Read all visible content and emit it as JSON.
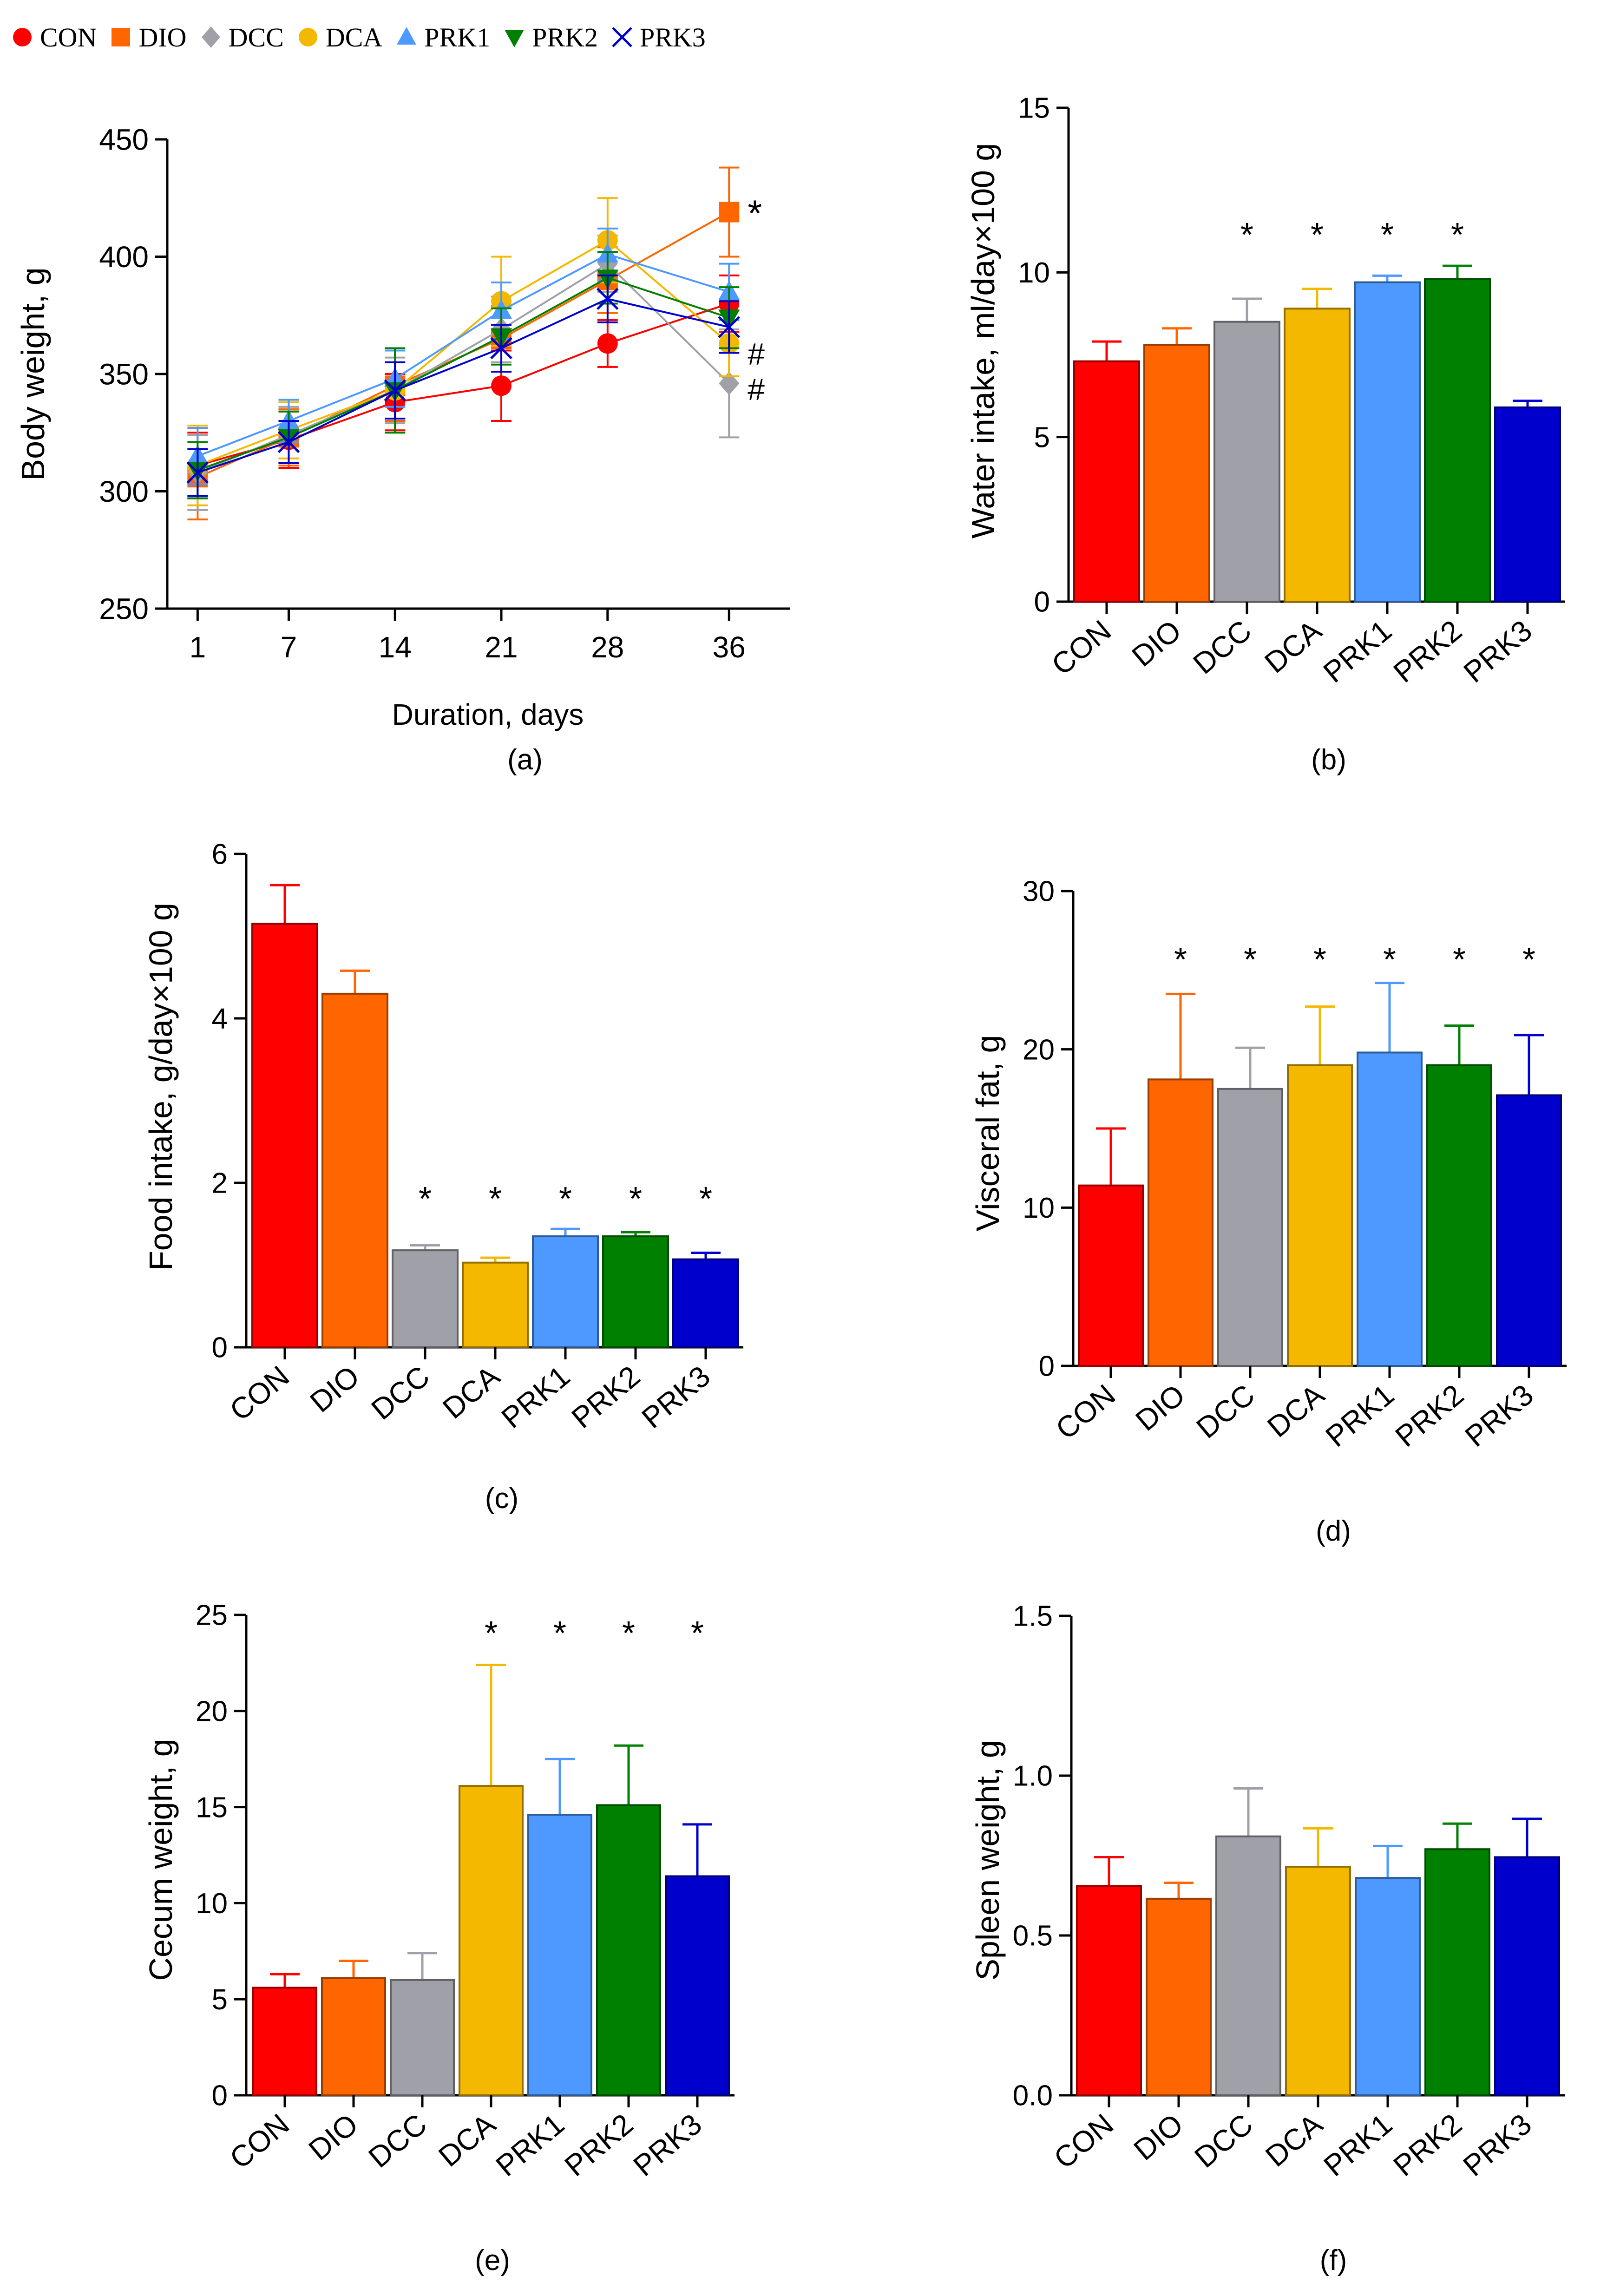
{
  "legend": [
    {
      "name": "CON",
      "color": "#ff0000",
      "marker": "circle"
    },
    {
      "name": "DIO",
      "color": "#ff6600",
      "marker": "square"
    },
    {
      "name": "DCC",
      "color": "#a0a0a8",
      "marker": "diamond"
    },
    {
      "name": "DCA",
      "color": "#f5b800",
      "marker": "circle"
    },
    {
      "name": "PRK1",
      "color": "#4d99ff",
      "marker": "triangle-up"
    },
    {
      "name": "PRK2",
      "color": "#008000",
      "marker": "triangle-down"
    },
    {
      "name": "PRK3",
      "color": "#0000cc",
      "marker": "x"
    }
  ],
  "chart_data": [
    {
      "id": "a",
      "panel_label": "(a)",
      "type": "line",
      "xlabel": "Duration, days",
      "ylabel": "Body weight, g",
      "x": [
        1,
        7,
        14,
        21,
        28,
        36
      ],
      "x_ticks": [
        "1",
        "7",
        "14",
        "21",
        "28",
        "36"
      ],
      "ylim": [
        250,
        450
      ],
      "y_ticks": [
        "250",
        "300",
        "350",
        "400",
        "450"
      ],
      "series": [
        {
          "name": "CON",
          "color": "#ff0000",
          "marker": "circle",
          "values": [
            311,
            322,
            338,
            345,
            363,
            380
          ],
          "errors": [
            14,
            12,
            12,
            15,
            10,
            12
          ]
        },
        {
          "name": "DIO",
          "color": "#ff6600",
          "marker": "square",
          "values": [
            306,
            323,
            345,
            365,
            390,
            419
          ],
          "errors": [
            18,
            12,
            15,
            14,
            14,
            19
          ]
        },
        {
          "name": "DCC",
          "color": "#a0a0a8",
          "marker": "diamond",
          "values": [
            308,
            324,
            343,
            369,
            397,
            346
          ],
          "errors": [
            16,
            12,
            14,
            14,
            12,
            23
          ]
        },
        {
          "name": "DCA",
          "color": "#f5b800",
          "marker": "circle",
          "values": [
            311,
            326,
            343,
            381,
            407,
            363
          ],
          "errors": [
            17,
            12,
            18,
            19,
            18,
            14
          ]
        },
        {
          "name": "PRK1",
          "color": "#4d99ff",
          "marker": "triangle-up",
          "values": [
            315,
            330,
            348,
            377,
            401,
            385
          ],
          "errors": [
            12,
            9,
            12,
            12,
            11,
            12
          ]
        },
        {
          "name": "PRK2",
          "color": "#008000",
          "marker": "triangle-down",
          "values": [
            309,
            323,
            343,
            366,
            391,
            374
          ],
          "errors": [
            12,
            11,
            18,
            12,
            11,
            13
          ]
        },
        {
          "name": "PRK3",
          "color": "#0000cc",
          "marker": "x",
          "values": [
            308,
            321,
            343,
            361,
            382,
            370
          ],
          "errors": [
            10,
            9,
            12,
            10,
            10,
            11
          ]
        }
      ],
      "annotations": [
        {
          "text": "*",
          "x": 36,
          "y": 419
        },
        {
          "text": "#",
          "x": 36,
          "y": 360
        },
        {
          "text": "#",
          "x": 36,
          "y": 345
        }
      ]
    },
    {
      "id": "b",
      "panel_label": "(b)",
      "type": "bar",
      "ylabel": "Water intake, ml/day×100 g",
      "categories": [
        "CON",
        "DIO",
        "DCC",
        "DCA",
        "PRK1",
        "PRK2",
        "PRK3"
      ],
      "values": [
        7.3,
        7.8,
        8.5,
        8.9,
        9.7,
        9.8,
        5.9
      ],
      "errors": [
        0.6,
        0.5,
        0.7,
        0.6,
        0.2,
        0.4,
        0.2
      ],
      "significance": [
        "",
        "",
        "*",
        "*",
        "*",
        "*",
        ""
      ],
      "ylim": [
        0,
        15
      ],
      "y_ticks": [
        "0",
        "5",
        "10",
        "15"
      ]
    },
    {
      "id": "c",
      "panel_label": "(c)",
      "type": "bar",
      "ylabel": "Food intake, g/day×100 g",
      "categories": [
        "CON",
        "DIO",
        "DCC",
        "DCA",
        "PRK1",
        "PRK2",
        "PRK3"
      ],
      "values": [
        5.15,
        4.3,
        1.18,
        1.03,
        1.35,
        1.35,
        1.07
      ],
      "errors": [
        0.47,
        0.28,
        0.06,
        0.06,
        0.09,
        0.05,
        0.08
      ],
      "significance": [
        "",
        "",
        "*",
        "*",
        "*",
        "*",
        "*"
      ],
      "ylim": [
        0,
        6
      ],
      "y_ticks": [
        "0",
        "2",
        "4",
        "6"
      ]
    },
    {
      "id": "d",
      "panel_label": "(d)",
      "type": "bar",
      "ylabel": "Visceral fat, g",
      "categories": [
        "CON",
        "DIO",
        "DCC",
        "DCA",
        "PRK1",
        "PRK2",
        "PRK3"
      ],
      "values": [
        11.4,
        18.1,
        17.5,
        19.0,
        19.8,
        19.0,
        17.1
      ],
      "errors": [
        3.6,
        5.4,
        2.6,
        3.7,
        4.4,
        2.5,
        3.8
      ],
      "significance": [
        "",
        "*",
        "*",
        "*",
        "*",
        "*",
        "*"
      ],
      "ylim": [
        0,
        30
      ],
      "y_ticks": [
        "0",
        "10",
        "20",
        "30"
      ]
    },
    {
      "id": "e",
      "panel_label": "(e)",
      "type": "bar",
      "ylabel": "Cecum weight, g",
      "categories": [
        "CON",
        "DIO",
        "DCC",
        "DCA",
        "PRK1",
        "PRK2",
        "PRK3"
      ],
      "values": [
        5.6,
        6.1,
        6.0,
        16.1,
        14.6,
        15.1,
        11.4
      ],
      "errors": [
        0.7,
        0.9,
        1.4,
        6.3,
        2.9,
        3.1,
        2.7
      ],
      "significance": [
        "",
        "",
        "",
        "*",
        "*",
        "*",
        "*"
      ],
      "ylim": [
        0,
        25
      ],
      "y_ticks": [
        "0",
        "5",
        "10",
        "15",
        "20",
        "25"
      ]
    },
    {
      "id": "f",
      "panel_label": "(f)",
      "type": "bar",
      "ylabel": "Spleen weight, g",
      "categories": [
        "CON",
        "DIO",
        "DCC",
        "DCA",
        "PRK1",
        "PRK2",
        "PRK3"
      ],
      "values": [
        0.655,
        0.615,
        0.81,
        0.715,
        0.68,
        0.77,
        0.745
      ],
      "errors": [
        0.09,
        0.05,
        0.15,
        0.12,
        0.1,
        0.08,
        0.12
      ],
      "significance": [
        "",
        "",
        "",
        "",
        "",
        "",
        ""
      ],
      "ylim": [
        0,
        1.5
      ],
      "y_ticks": [
        "0.0",
        "0.5",
        "1.0",
        "1.5"
      ]
    }
  ]
}
